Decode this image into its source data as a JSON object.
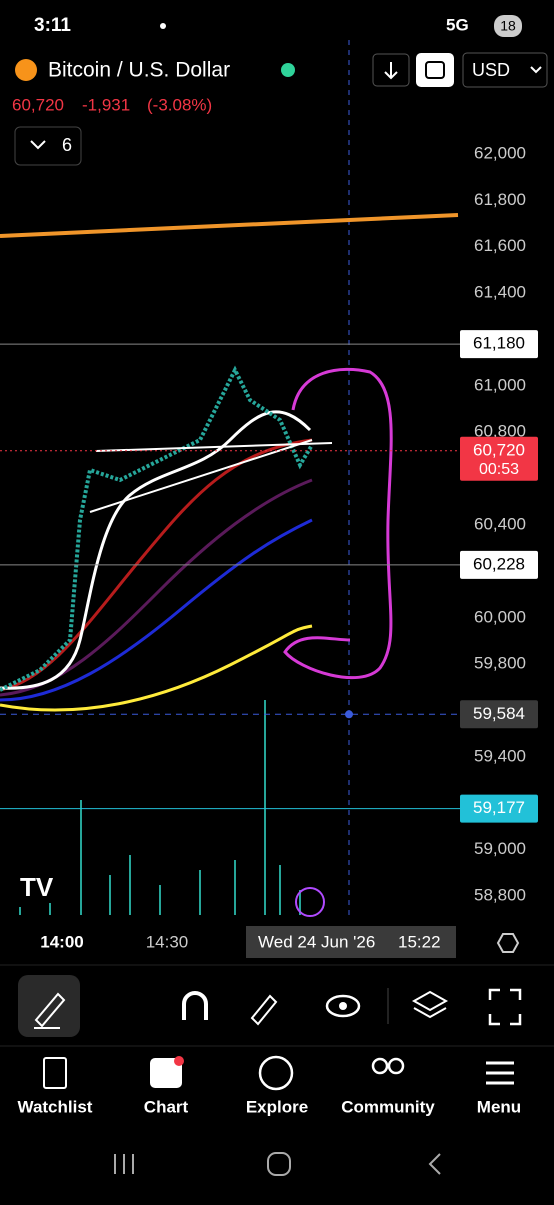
{
  "status_bar": {
    "time": "3:11",
    "network": "5G",
    "battery": "18"
  },
  "header": {
    "symbol": "Bitcoin / U.S. Dollar",
    "currency": "USD"
  },
  "quote": {
    "price": "60,720",
    "change": "-1,931",
    "change_percent": "(-3.08%)"
  },
  "indicator_count": "6",
  "price_axis": {
    "ylim": [
      58697,
      62448
    ],
    "ticks": [
      {
        "value": 62000,
        "label": "62,000"
      },
      {
        "value": 61800,
        "label": "61,800"
      },
      {
        "value": 61600,
        "label": "61,600"
      },
      {
        "value": 61400,
        "label": "61,400"
      },
      {
        "value": 61000,
        "label": "61,000"
      },
      {
        "value": 60800,
        "label": "60,800"
      },
      {
        "value": 60400,
        "label": "60,400"
      },
      {
        "value": 60000,
        "label": "60,000"
      },
      {
        "value": 59800,
        "label": "59,800"
      },
      {
        "value": 59400,
        "label": "59,400"
      },
      {
        "value": 59000,
        "label": "59,000"
      },
      {
        "value": 58800,
        "label": "58,800"
      }
    ],
    "tags": [
      {
        "value": 61180,
        "label": "61,180",
        "color": "#ffffff"
      },
      {
        "value": 60720,
        "label": "60,720",
        "color": "#f23645",
        "countdown": "00:53"
      },
      {
        "value": 60228,
        "label": "60,228",
        "color": "#ffffff"
      },
      {
        "value": 59584,
        "label": "59,584",
        "color": "#3a3a3a"
      },
      {
        "value": 59177,
        "label": "59,177",
        "color": "#22c1d8"
      }
    ]
  },
  "time_axis": {
    "labels": [
      "14:00",
      "14:30"
    ],
    "crosshair_date": "Wed 24 Jun '26",
    "crosshair_time": "15:22"
  },
  "nav": [
    "Watchlist",
    "Chart",
    "Explore",
    "Community",
    "Menu"
  ]
}
